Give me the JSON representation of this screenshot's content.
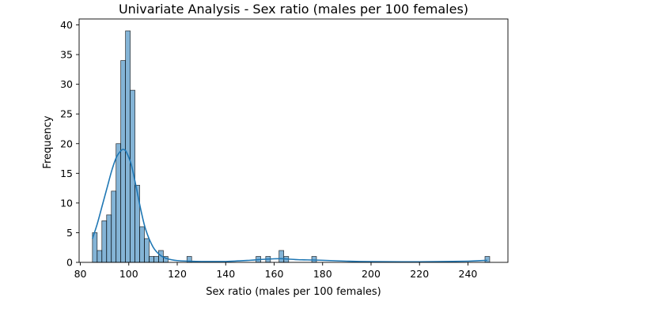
{
  "chart_data": {
    "type": "histogram",
    "title": "Univariate Analysis - Sex ratio (males per 100 females)",
    "xlabel": "Sex ratio (males per 100 females)",
    "ylabel": "Frequency",
    "xlim": [
      79.5,
      256.5
    ],
    "ylim": [
      0,
      41
    ],
    "xticks": [
      80,
      100,
      120,
      140,
      160,
      180,
      200,
      220,
      240
    ],
    "yticks": [
      0,
      5,
      10,
      15,
      20,
      25,
      30,
      35,
      40
    ],
    "grid": false,
    "legend": "none",
    "bar_color": "#1f77b4",
    "bar_alpha": 0.55,
    "kde_color": "#1f77b4",
    "bins": {
      "start": 85,
      "width": 1.95,
      "counts": [
        5,
        2,
        7,
        8,
        12,
        20,
        34,
        39,
        29,
        13,
        6,
        4,
        1,
        1,
        2,
        1,
        0,
        0,
        0,
        0,
        1,
        0,
        0,
        0,
        0,
        0,
        0,
        0,
        0,
        0,
        0,
        0,
        0,
        0,
        0,
        0,
        0,
        0,
        0,
        0,
        0,
        0,
        0,
        0,
        0,
        0,
        0,
        0,
        0,
        0,
        0,
        0,
        0,
        0,
        0,
        0,
        0,
        0,
        0,
        0,
        0,
        0,
        0,
        0,
        0,
        0,
        0,
        0,
        0,
        0,
        0,
        0,
        0,
        0,
        0,
        0,
        0,
        0,
        0,
        0,
        0,
        0,
        0,
        0
      ]
    },
    "extra_bars": [
      {
        "x": 153.5,
        "count": 1
      },
      {
        "x": 157.5,
        "count": 1
      },
      {
        "x": 163.0,
        "count": 2
      },
      {
        "x": 165.0,
        "count": 1
      },
      {
        "x": 176.5,
        "count": 1
      },
      {
        "x": 248.0,
        "count": 1
      }
    ],
    "kde": {
      "x": [
        85,
        87,
        89,
        91,
        93,
        95,
        97,
        98,
        99,
        101,
        103,
        105,
        107,
        110,
        113,
        116,
        120,
        125,
        130,
        140,
        150,
        155,
        160,
        163,
        166,
        170,
        176,
        180,
        190,
        200,
        220,
        240,
        248
      ],
      "y": [
        4.0,
        6.5,
        9.5,
        12.5,
        15.5,
        17.8,
        18.9,
        19.0,
        18.6,
        16.5,
        12.8,
        8.8,
        5.5,
        2.6,
        1.2,
        0.6,
        0.3,
        0.2,
        0.15,
        0.15,
        0.35,
        0.5,
        0.6,
        0.62,
        0.55,
        0.45,
        0.4,
        0.35,
        0.2,
        0.12,
        0.1,
        0.2,
        0.35
      ]
    }
  }
}
